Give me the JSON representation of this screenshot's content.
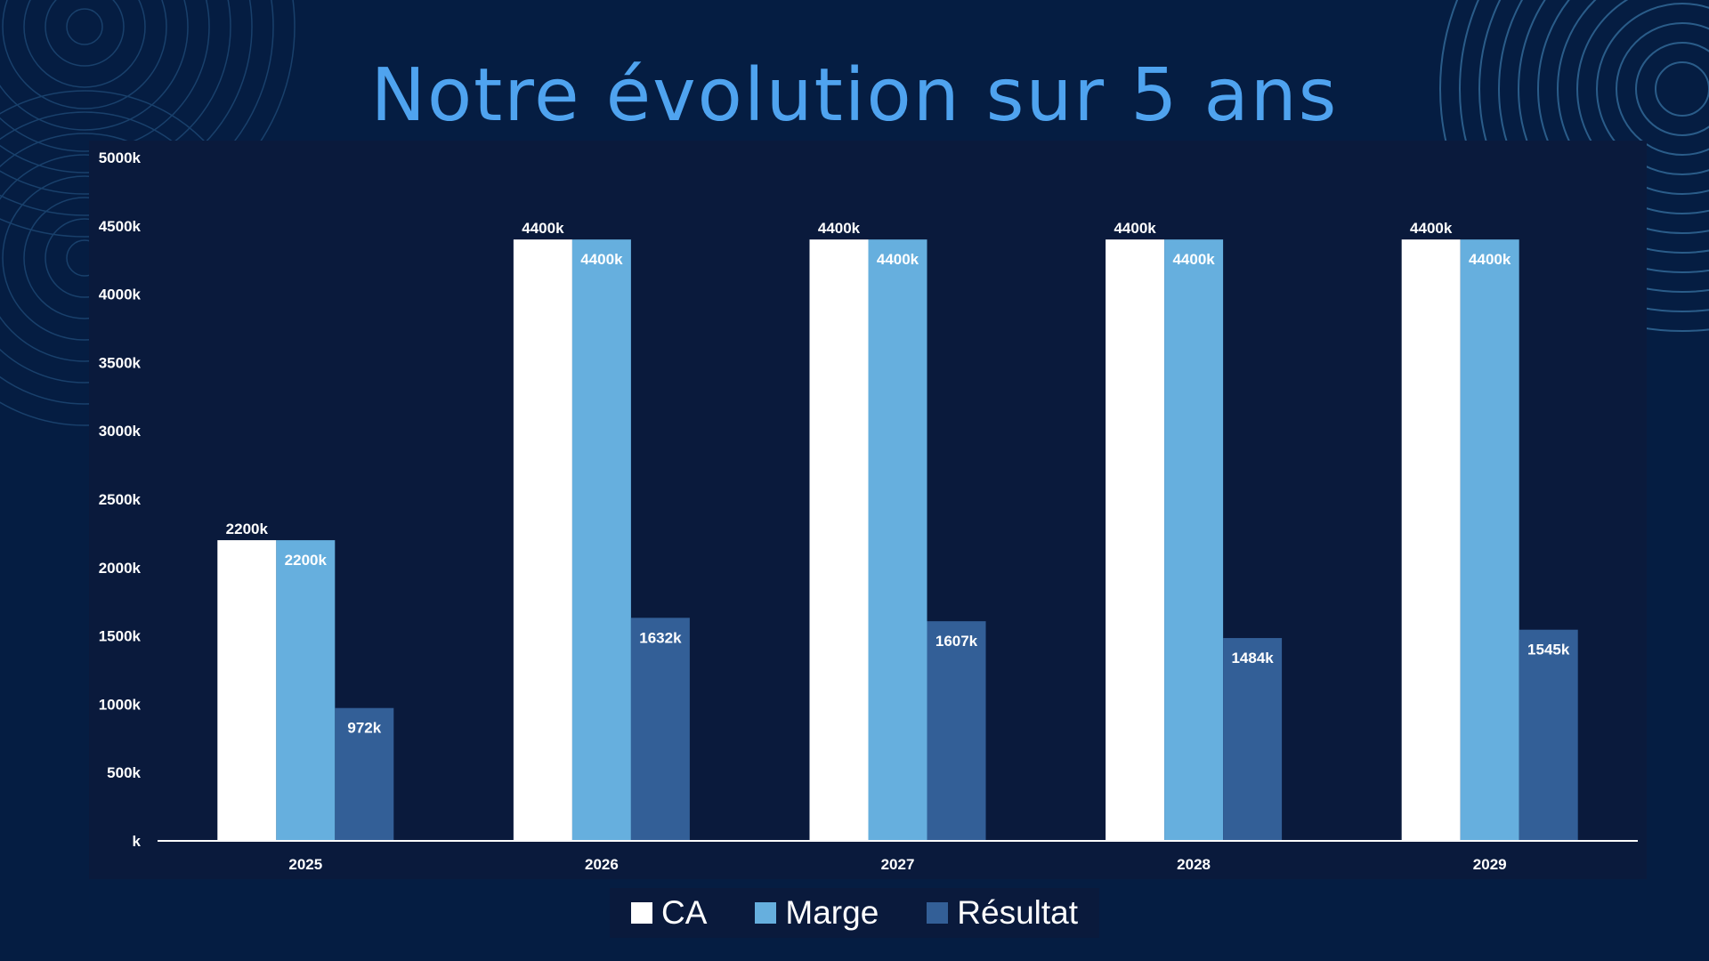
{
  "title": "Notre évolution sur 5 ans",
  "colors": {
    "background": "#051d42",
    "panel": "#0a1a3c",
    "title": "#4fa3ef",
    "ca": "#ffffff",
    "marge": "#66afde",
    "resultat": "#335f97",
    "axis": "#ffffff",
    "decor": "#3a78a8"
  },
  "legend": [
    {
      "label": "CA",
      "color": "#ffffff"
    },
    {
      "label": "Marge",
      "color": "#66afde"
    },
    {
      "label": "Résultat",
      "color": "#335f97"
    }
  ],
  "chart_data": {
    "type": "bar",
    "title": "Notre évolution sur 5 ans",
    "categories": [
      "2025",
      "2026",
      "2027",
      "2028",
      "2029"
    ],
    "series": [
      {
        "name": "CA",
        "color": "#ffffff",
        "values": [
          2200,
          4400,
          4400,
          4400,
          4400
        ],
        "labels": [
          "2200k",
          "4400k",
          "4400k",
          "4400k",
          "4400k"
        ]
      },
      {
        "name": "Marge",
        "color": "#66afde",
        "values": [
          2200,
          4400,
          4400,
          4400,
          4400
        ],
        "labels": [
          "2200k",
          "4400k",
          "4400k",
          "4400k",
          "4400k"
        ]
      },
      {
        "name": "Résultat",
        "color": "#335f97",
        "values": [
          972,
          1632,
          1607,
          1484,
          1545
        ],
        "labels": [
          "972k",
          "1632k",
          "1607k",
          "1484k",
          "1545k"
        ]
      }
    ],
    "ylim": [
      0,
      5000
    ],
    "yticks": [
      0,
      500,
      1000,
      1500,
      2000,
      2500,
      3000,
      3500,
      4000,
      4500,
      5000
    ],
    "ytick_labels": [
      "k",
      "500k",
      "1000k",
      "1500k",
      "2000k",
      "2500k",
      "3000k",
      "3500k",
      "4000k",
      "4500k",
      "5000k"
    ],
    "xlabel": "",
    "ylabel": "",
    "grid": false,
    "legend_position": "bottom"
  }
}
